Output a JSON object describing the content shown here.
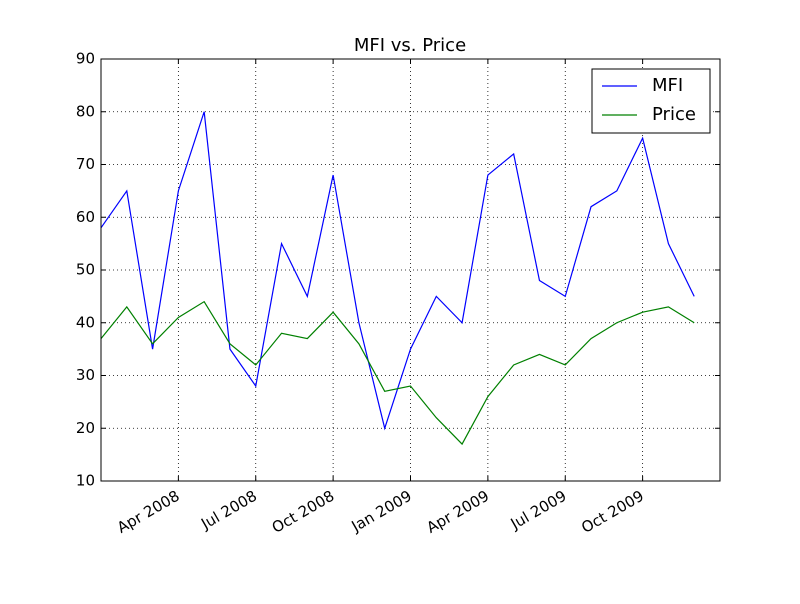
{
  "chart_data": {
    "type": "line",
    "title": "MFI vs. Price",
    "x": [
      "2008-01",
      "2008-02",
      "2008-03",
      "2008-04",
      "2008-05",
      "2008-06",
      "2008-07",
      "2008-08",
      "2008-09",
      "2008-10",
      "2008-11",
      "2008-12",
      "2009-01",
      "2009-02",
      "2009-03",
      "2009-04",
      "2009-05",
      "2009-06",
      "2009-07",
      "2009-08",
      "2009-09",
      "2009-10",
      "2009-11",
      "2009-12"
    ],
    "series": [
      {
        "name": "MFI",
        "color": "#0000ff",
        "values": [
          58,
          65,
          35,
          65,
          80,
          35,
          28,
          55,
          45,
          68,
          40,
          20,
          35,
          45,
          40,
          68,
          72,
          48,
          45,
          62,
          65,
          75,
          55,
          45
        ]
      },
      {
        "name": "Price",
        "color": "#008000",
        "values": [
          37,
          43,
          36,
          41,
          44,
          36,
          32,
          38,
          37,
          42,
          36,
          27,
          28,
          22,
          17,
          26,
          32,
          34,
          32,
          37,
          40,
          42,
          43,
          40
        ]
      }
    ],
    "xlim": [
      "2008-01",
      "2010-01"
    ],
    "xticks": [
      {
        "value": "2008-04",
        "label": "Apr 2008"
      },
      {
        "value": "2008-07",
        "label": "Jul 2008"
      },
      {
        "value": "2008-10",
        "label": "Oct 2008"
      },
      {
        "value": "2009-01",
        "label": "Jan 2009"
      },
      {
        "value": "2009-04",
        "label": "Apr 2009"
      },
      {
        "value": "2009-07",
        "label": "Jul 2009"
      },
      {
        "value": "2009-10",
        "label": "Oct 2009"
      }
    ],
    "ylim": [
      10,
      90
    ],
    "yticks": [
      10,
      20,
      30,
      40,
      50,
      60,
      70,
      80,
      90
    ],
    "grid": true,
    "legend": "upper-right"
  }
}
